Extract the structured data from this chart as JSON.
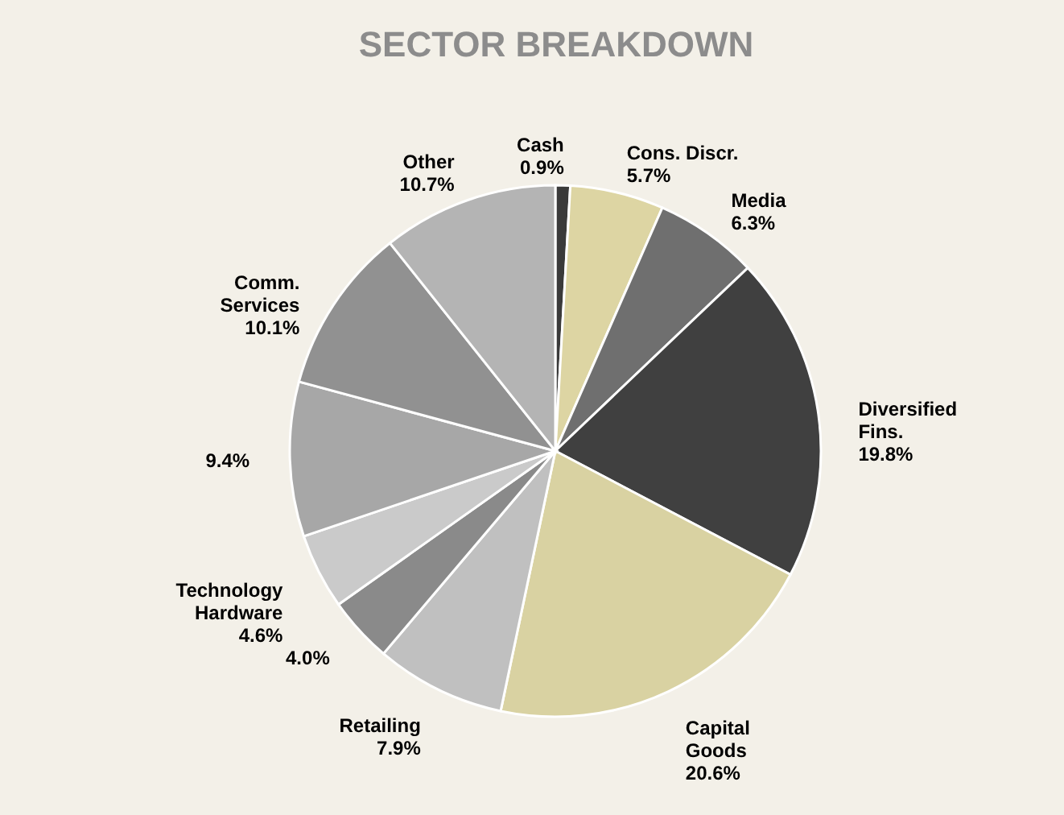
{
  "chart_data": {
    "type": "pie",
    "title": "SECTOR BREAKDOWN",
    "categories": [
      "Cash",
      "Cons. Discr.",
      "Media",
      "Diversified Fins.",
      "Capital Goods",
      "Retailing",
      null,
      "Technology Hardware",
      null,
      "Comm. Services",
      "Other"
    ],
    "values": [
      0.9,
      5.7,
      6.3,
      19.8,
      20.6,
      7.9,
      4.0,
      4.6,
      9.4,
      10.1,
      10.7
    ],
    "value_labels": [
      "0.9%",
      "5.7%",
      "6.3%",
      "19.8%",
      "20.6%",
      "7.9%",
      "4.0%",
      "4.6%",
      "9.4%",
      "10.1%",
      "10.7%"
    ],
    "colors": [
      "#3a3a3a",
      "#ddd5a3",
      "#6f6f6f",
      "#404040",
      "#d9d2a2",
      "#c0c0c0",
      "#8a8a8a",
      "#cacaca",
      "#a7a7a7",
      "#919191",
      "#b4b4b4"
    ]
  }
}
